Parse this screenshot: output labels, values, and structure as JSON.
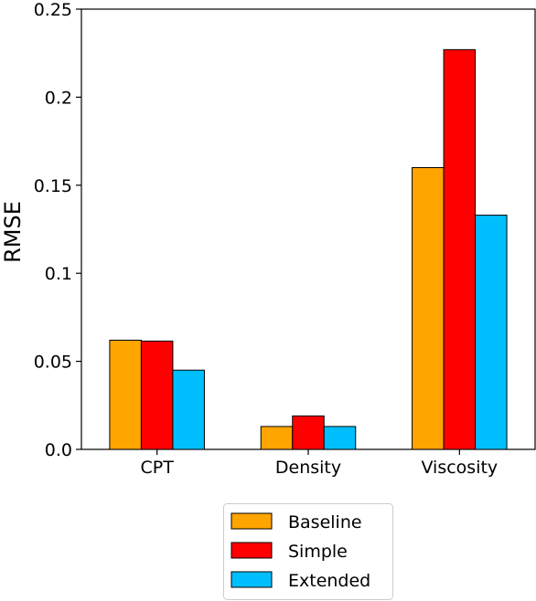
{
  "chart_data": {
    "type": "bar",
    "title": "",
    "xlabel": "",
    "ylabel": "RMSE",
    "categories": [
      "CPT",
      "Density",
      "Viscosity"
    ],
    "series": [
      {
        "name": "Baseline",
        "values": [
          0.062,
          0.013,
          0.16
        ],
        "color": "#ffa500"
      },
      {
        "name": "Simple",
        "values": [
          0.0615,
          0.019,
          0.227
        ],
        "color": "#ff0000"
      },
      {
        "name": "Extended",
        "values": [
          0.045,
          0.013,
          0.133
        ],
        "color": "#00bfff"
      }
    ],
    "ylim": [
      0,
      0.25
    ],
    "yticks": [
      0.0,
      0.05,
      0.1,
      0.15,
      0.2,
      0.25
    ],
    "ytick_labels": [
      "0.0",
      "0.05",
      "0.1",
      "0.15",
      "0.2",
      "0.25"
    ],
    "grid": false,
    "legend_position": "bottom-center"
  }
}
